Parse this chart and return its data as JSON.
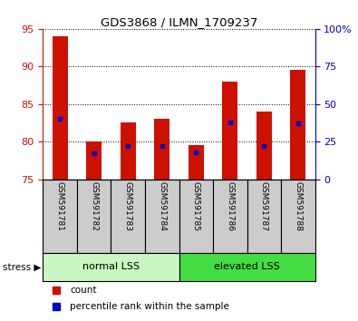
{
  "title": "GDS3868 / ILMN_1709237",
  "samples": [
    "GSM591781",
    "GSM591782",
    "GSM591783",
    "GSM591784",
    "GSM591785",
    "GSM591786",
    "GSM591787",
    "GSM591788"
  ],
  "counts": [
    94,
    80,
    82.5,
    83,
    79.5,
    88,
    84,
    89.5
  ],
  "percentile_ranks": [
    40,
    17,
    22,
    22,
    18,
    38,
    22,
    37
  ],
  "ylim_left": [
    75,
    95
  ],
  "ylim_right": [
    0,
    100
  ],
  "yticks_left": [
    75,
    80,
    85,
    90,
    95
  ],
  "yticks_right": [
    0,
    25,
    50,
    75,
    100
  ],
  "groups": [
    {
      "label": "normal LSS",
      "start": 0,
      "end": 3,
      "color": "#c8f5c0"
    },
    {
      "label": "elevated LSS",
      "start": 4,
      "end": 7,
      "color": "#44dd44"
    }
  ],
  "bar_color": "#cc1100",
  "dot_color": "#0000cc",
  "left_tick_color": "#cc1100",
  "right_tick_color": "#0000cc",
  "background_color": "#ffffff",
  "legend_count_label": "count",
  "legend_pct_label": "percentile rank within the sample",
  "bar_width": 0.45,
  "bar_bottom": 75,
  "sample_bg_color": "#cccccc",
  "col_border_color": "#000000"
}
